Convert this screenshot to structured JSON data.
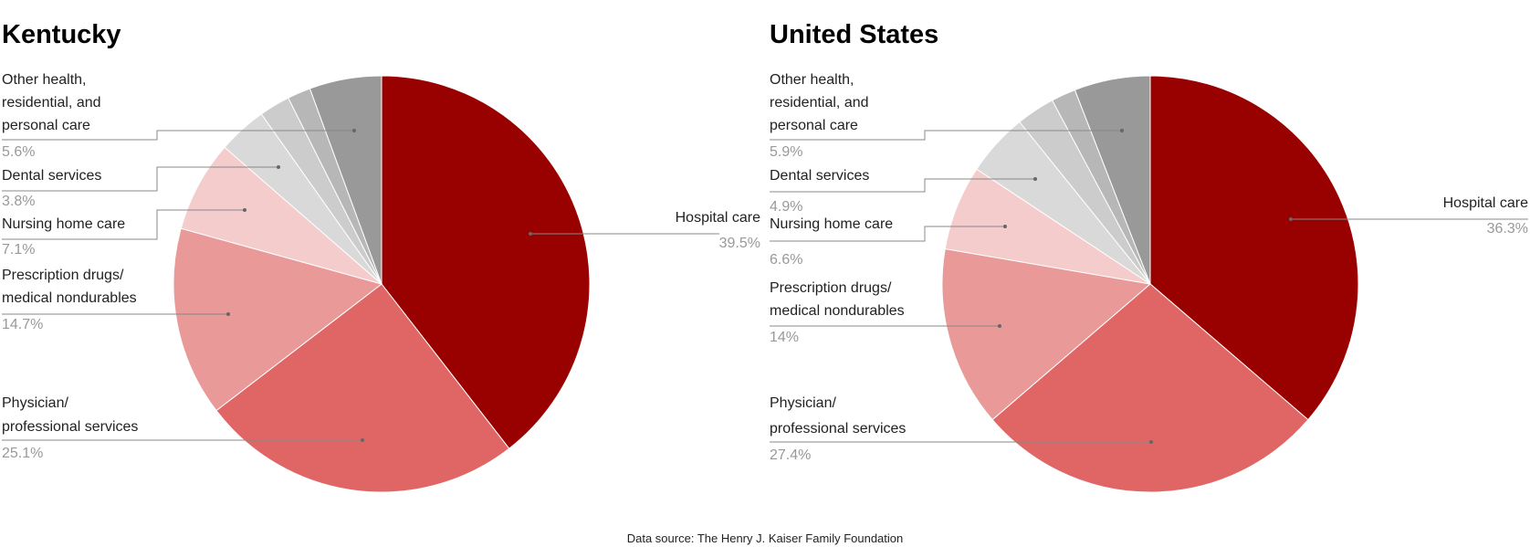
{
  "chart_data": [
    {
      "type": "pie",
      "title": "Kentucky",
      "colors": [
        "#990000",
        "#e06666",
        "#ea9999",
        "#f4cccc",
        "#d9d9d9",
        "#cccccc",
        "#b7b7b7",
        "#999999"
      ],
      "slices": [
        {
          "name": "Hospital care",
          "value": 39.5,
          "label": "39.5%"
        },
        {
          "name": "Physician/ professional services",
          "value": 25.1,
          "label": "25.1%"
        },
        {
          "name": "Prescription drugs/ medical nondurables",
          "value": 14.7,
          "label": "14.7%"
        },
        {
          "name": "Nursing home care",
          "value": 7.1,
          "label": "7.1%"
        },
        {
          "name": "Dental services",
          "value": 3.8,
          "label": "3.8%"
        },
        {
          "name": "",
          "value": 2.4,
          "label": ""
        },
        {
          "name": "",
          "value": 1.8,
          "label": ""
        },
        {
          "name": "Other health, residential, and personal care",
          "value": 5.6,
          "label": "5.6%"
        }
      ]
    },
    {
      "type": "pie",
      "title": "United States",
      "colors": [
        "#990000",
        "#e06666",
        "#ea9999",
        "#f4cccc",
        "#d9d9d9",
        "#cccccc",
        "#b7b7b7",
        "#999999"
      ],
      "slices": [
        {
          "name": "Hospital care",
          "value": 36.3,
          "label": "36.3%"
        },
        {
          "name": "Physician/ professional services",
          "value": 27.4,
          "label": "27.4%"
        },
        {
          "name": "Prescription drugs/ medical nondurables",
          "value": 14.0,
          "label": "14%"
        },
        {
          "name": "Nursing home care",
          "value": 6.6,
          "label": "6.6%"
        },
        {
          "name": "Dental services",
          "value": 4.9,
          "label": "4.9%"
        },
        {
          "name": "",
          "value": 3.0,
          "label": ""
        },
        {
          "name": "",
          "value": 1.9,
          "label": ""
        },
        {
          "name": "Other health, residential, and personal care",
          "value": 5.9,
          "label": "5.9%"
        }
      ]
    }
  ],
  "footer": {
    "source": "Data source: The Henry J. Kaiser Family Foundation"
  }
}
